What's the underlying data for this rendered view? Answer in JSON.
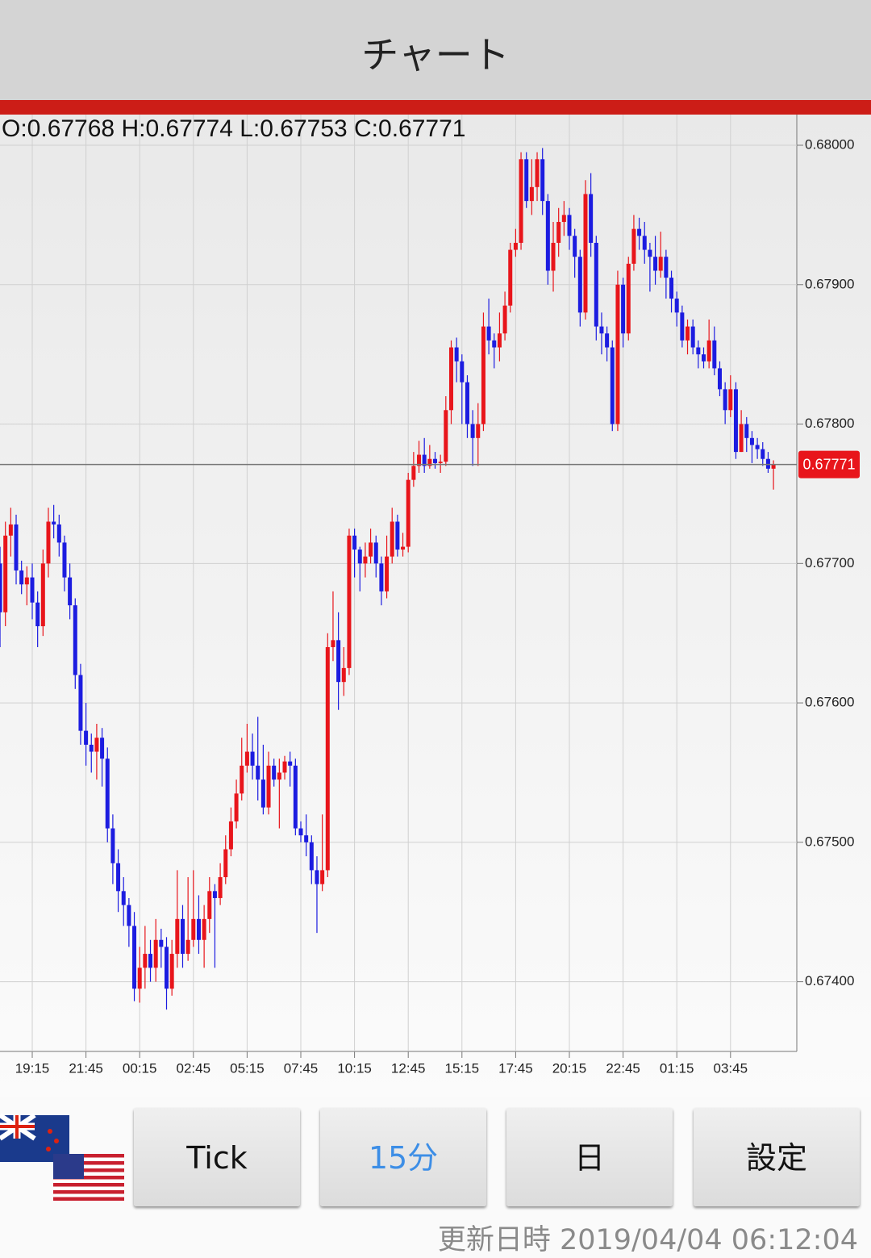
{
  "header": {
    "title": "チャート"
  },
  "chart_data": {
    "type": "candlestick",
    "info": "O:0.67768 H:0.67774 L:0.67753 C:0.67771",
    "up_color": "#e8151b",
    "down_color": "#1c1ce0",
    "grid": true,
    "ylim": [
      0.6735,
      0.68022
    ],
    "yticks": [
      {
        "value": 0.674,
        "label": "0.67400"
      },
      {
        "value": 0.675,
        "label": "0.67500"
      },
      {
        "value": 0.676,
        "label": "0.67600"
      },
      {
        "value": 0.677,
        "label": "0.67700"
      },
      {
        "value": 0.678,
        "label": "0.67800"
      },
      {
        "value": 0.679,
        "label": "0.67900"
      },
      {
        "value": 0.68,
        "label": "0.68000"
      }
    ],
    "last_price": {
      "value": 0.67771,
      "label": "0.67771",
      "color": "#e8151b"
    },
    "categories": [
      null,
      null,
      null,
      null,
      null,
      null,
      "19:15",
      null,
      null,
      null,
      null,
      null,
      null,
      null,
      null,
      null,
      "21:45",
      null,
      null,
      null,
      null,
      null,
      null,
      null,
      null,
      null,
      "00:15",
      null,
      null,
      null,
      null,
      null,
      null,
      null,
      null,
      null,
      "02:45",
      null,
      null,
      null,
      null,
      null,
      null,
      null,
      null,
      null,
      "05:15",
      null,
      null,
      null,
      null,
      null,
      null,
      null,
      null,
      null,
      "07:45",
      null,
      null,
      null,
      null,
      null,
      null,
      null,
      null,
      null,
      "10:15",
      null,
      null,
      null,
      null,
      null,
      null,
      null,
      null,
      null,
      "12:45",
      null,
      null,
      null,
      null,
      null,
      null,
      null,
      null,
      null,
      "15:15",
      null,
      null,
      null,
      null,
      null,
      null,
      null,
      null,
      null,
      "17:45",
      null,
      null,
      null,
      null,
      null,
      null,
      null,
      null,
      null,
      "20:15",
      null,
      null,
      null,
      null,
      null,
      null,
      null,
      null,
      null,
      "22:45",
      null,
      null,
      null,
      null,
      null,
      null,
      null,
      null,
      null,
      "01:15",
      null,
      null,
      null,
      null,
      null,
      null,
      null,
      null,
      null,
      "03:45",
      null,
      null,
      null,
      null,
      null,
      null,
      null,
      null
    ],
    "open": [
      0.677,
      0.67665,
      0.6772,
      0.67728,
      0.67695,
      0.67685,
      0.6769,
      0.67672,
      0.67655,
      0.677,
      0.6773,
      0.67728,
      0.67715,
      0.6769,
      0.6767,
      0.6762,
      0.6758,
      0.6757,
      0.67565,
      0.67575,
      0.6756,
      0.6751,
      0.67485,
      0.67465,
      0.67455,
      0.6744,
      0.67395,
      0.6741,
      0.6742,
      0.6741,
      0.6743,
      0.67425,
      0.67395,
      0.6742,
      0.67445,
      0.6742,
      0.6743,
      0.67445,
      0.6743,
      0.67445,
      0.67465,
      0.6746,
      0.67475,
      0.67495,
      0.67515,
      0.67535,
      0.67555,
      0.67565,
      0.67555,
      0.67545,
      0.67525,
      0.67555,
      0.67545,
      0.6755,
      0.67558,
      0.67555,
      0.6751,
      0.67505,
      0.675,
      0.6748,
      0.6747,
      0.6748,
      0.6764,
      0.67645,
      0.67615,
      0.67625,
      0.6772,
      0.6771,
      0.677,
      0.67705,
      0.67715,
      0.677,
      0.6768,
      0.67705,
      0.6773,
      0.6771,
      0.67712,
      0.6776,
      0.6777,
      0.67778,
      0.6777,
      0.67775,
      0.67772,
      0.67773,
      0.6781,
      0.67855,
      0.67845,
      0.6783,
      0.678,
      0.6779,
      0.678,
      0.6787,
      0.6786,
      0.67855,
      0.67865,
      0.67885,
      0.67925,
      0.6793,
      0.6799,
      0.6796,
      0.6797,
      0.6799,
      0.6796,
      0.6791,
      0.6793,
      0.67945,
      0.6795,
      0.67935,
      0.6792,
      0.6788,
      0.67965,
      0.6793,
      0.6787,
      0.67865,
      0.67855,
      0.678,
      0.679,
      0.67865,
      0.67915,
      0.6794,
      0.67935,
      0.67925,
      0.6792,
      0.6791,
      0.6792,
      0.67905,
      0.6789,
      0.6788,
      0.6786,
      0.6787,
      0.67855,
      0.6785,
      0.67845,
      0.6786,
      0.6784,
      0.67825,
      0.6781,
      0.67825,
      0.6778,
      0.678,
      0.6779,
      0.67785,
      0.67782,
      0.67775,
      0.67768
    ],
    "high": [
      0.67712,
      0.6773,
      0.6774,
      0.67735,
      0.67702,
      0.67698,
      0.677,
      0.6768,
      0.6771,
      0.6774,
      0.67742,
      0.67735,
      0.6772,
      0.677,
      0.67675,
      0.67628,
      0.676,
      0.67578,
      0.67585,
      0.67582,
      0.67568,
      0.6752,
      0.67495,
      0.67475,
      0.6746,
      0.6745,
      0.67425,
      0.6744,
      0.6743,
      0.67445,
      0.67438,
      0.67432,
      0.6743,
      0.6748,
      0.67455,
      0.67475,
      0.6748,
      0.67462,
      0.67455,
      0.67475,
      0.6747,
      0.67485,
      0.67505,
      0.67525,
      0.67545,
      0.67575,
      0.67585,
      0.67578,
      0.6759,
      0.6757,
      0.67565,
      0.6756,
      0.6756,
      0.67562,
      0.67565,
      0.6756,
      0.67515,
      0.6752,
      0.67505,
      0.6749,
      0.6752,
      0.6765,
      0.6768,
      0.67665,
      0.6764,
      0.67725,
      0.67725,
      0.67712,
      0.67715,
      0.67725,
      0.6772,
      0.67705,
      0.6772,
      0.6774,
      0.67735,
      0.67722,
      0.67765,
      0.6778,
      0.67788,
      0.6779,
      0.67785,
      0.6778,
      0.67778,
      0.6782,
      0.6786,
      0.67862,
      0.6785,
      0.67835,
      0.6781,
      0.67815,
      0.6788,
      0.6789,
      0.67865,
      0.6788,
      0.67895,
      0.6793,
      0.6794,
      0.67995,
      0.67995,
      0.6799,
      0.67995,
      0.67998,
      0.67965,
      0.67945,
      0.67955,
      0.6796,
      0.67955,
      0.6794,
      0.67925,
      0.67975,
      0.6798,
      0.67935,
      0.6788,
      0.6787,
      0.6786,
      0.6791,
      0.67905,
      0.6792,
      0.6795,
      0.67948,
      0.67945,
      0.6793,
      0.67935,
      0.67938,
      0.67925,
      0.6791,
      0.67895,
      0.67885,
      0.67875,
      0.67875,
      0.6786,
      0.67855,
      0.67875,
      0.6787,
      0.67845,
      0.6783,
      0.67835,
      0.6783,
      0.6781,
      0.67805,
      0.67795,
      0.6779,
      0.67787,
      0.6778,
      0.67774
    ],
    "low": [
      0.6764,
      0.67655,
      0.67705,
      0.67685,
      0.67678,
      0.6767,
      0.6766,
      0.6764,
      0.67648,
      0.6769,
      0.67718,
      0.67705,
      0.6768,
      0.6766,
      0.6761,
      0.6757,
      0.67555,
      0.6755,
      0.67545,
      0.6754,
      0.675,
      0.6747,
      0.6745,
      0.6744,
      0.67425,
      0.67386,
      0.67385,
      0.67395,
      0.674,
      0.674,
      0.6741,
      0.6738,
      0.6739,
      0.6741,
      0.6741,
      0.67415,
      0.67425,
      0.6742,
      0.6741,
      0.67435,
      0.6741,
      0.67455,
      0.6747,
      0.6749,
      0.6751,
      0.6753,
      0.6755,
      0.67545,
      0.6753,
      0.6752,
      0.6752,
      0.6754,
      0.6751,
      0.67545,
      0.6754,
      0.67505,
      0.675,
      0.6749,
      0.6747,
      0.67435,
      0.67465,
      0.67475,
      0.6763,
      0.67595,
      0.67605,
      0.6762,
      0.6769,
      0.6768,
      0.6769,
      0.677,
      0.6769,
      0.6767,
      0.67675,
      0.677,
      0.67705,
      0.67705,
      0.67708,
      0.67755,
      0.67765,
      0.67765,
      0.67768,
      0.67768,
      0.67765,
      0.6777,
      0.678,
      0.6783,
      0.678,
      0.6779,
      0.6777,
      0.6777,
      0.67795,
      0.6785,
      0.6784,
      0.67845,
      0.6786,
      0.6788,
      0.6792,
      0.67925,
      0.67955,
      0.6795,
      0.6796,
      0.6795,
      0.679,
      0.67895,
      0.6792,
      0.67935,
      0.67925,
      0.67905,
      0.6787,
      0.67875,
      0.6792,
      0.6786,
      0.6785,
      0.67845,
      0.67795,
      0.67795,
      0.67855,
      0.6786,
      0.6791,
      0.67925,
      0.67915,
      0.67895,
      0.679,
      0.67905,
      0.6789,
      0.6788,
      0.6787,
      0.67855,
      0.6785,
      0.6785,
      0.6784,
      0.6784,
      0.6784,
      0.67835,
      0.6782,
      0.678,
      0.67805,
      0.67775,
      0.6778,
      0.6778,
      0.67772,
      0.67775,
      0.6777,
      0.67765,
      0.67753
    ],
    "close": [
      0.67665,
      0.6772,
      0.67728,
      0.67695,
      0.67685,
      0.6769,
      0.67672,
      0.67655,
      0.677,
      0.6773,
      0.67728,
      0.67715,
      0.6769,
      0.6767,
      0.6762,
      0.6758,
      0.6757,
      0.67565,
      0.67575,
      0.6756,
      0.6751,
      0.67485,
      0.67465,
      0.67455,
      0.6744,
      0.67395,
      0.6741,
      0.6742,
      0.6741,
      0.6743,
      0.67425,
      0.67395,
      0.6742,
      0.67445,
      0.6742,
      0.6743,
      0.67445,
      0.6743,
      0.67445,
      0.67465,
      0.6746,
      0.67475,
      0.67495,
      0.67515,
      0.67535,
      0.67555,
      0.67565,
      0.67555,
      0.67545,
      0.67525,
      0.67555,
      0.67545,
      0.6755,
      0.67558,
      0.67555,
      0.6751,
      0.67505,
      0.675,
      0.6748,
      0.6747,
      0.6748,
      0.6764,
      0.67645,
      0.67615,
      0.67625,
      0.6772,
      0.6771,
      0.677,
      0.67705,
      0.67715,
      0.677,
      0.6768,
      0.67705,
      0.6773,
      0.6771,
      0.67712,
      0.6776,
      0.6777,
      0.67778,
      0.6777,
      0.67775,
      0.67772,
      0.67773,
      0.6781,
      0.67855,
      0.67845,
      0.6783,
      0.678,
      0.6779,
      0.678,
      0.6787,
      0.6786,
      0.67855,
      0.67865,
      0.67885,
      0.67925,
      0.6793,
      0.6799,
      0.6796,
      0.6797,
      0.6799,
      0.6796,
      0.6791,
      0.6793,
      0.67945,
      0.6795,
      0.67935,
      0.6792,
      0.6788,
      0.67965,
      0.6793,
      0.6787,
      0.67865,
      0.67855,
      0.678,
      0.679,
      0.67865,
      0.67915,
      0.6794,
      0.67935,
      0.67925,
      0.6792,
      0.6791,
      0.6792,
      0.67905,
      0.6789,
      0.6788,
      0.6786,
      0.6787,
      0.67855,
      0.6785,
      0.67845,
      0.6786,
      0.6784,
      0.67825,
      0.6781,
      0.67825,
      0.6778,
      0.678,
      0.6779,
      0.67785,
      0.67782,
      0.67775,
      0.67768,
      0.67771
    ]
  },
  "buttons": [
    "Tick",
    "15分",
    "日",
    "設定"
  ],
  "footer": "更新日時 2019/04/04 06:12:04"
}
